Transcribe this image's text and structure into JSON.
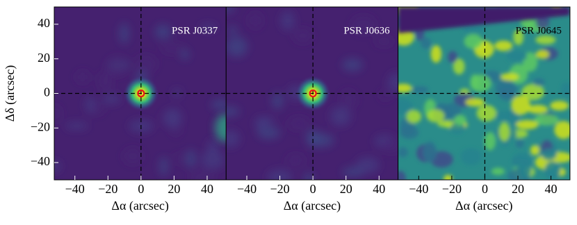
{
  "chart_data": [
    {
      "type": "heatmap",
      "title": "PSR J0337",
      "xlabel": "Δα (arcsec)",
      "ylabel": "Δδ (arcsec)",
      "xlim": [
        -52.5,
        51.5
      ],
      "ylim": [
        -50,
        50
      ],
      "xticks": [
        {
          "value": -40,
          "label": "−40"
        },
        {
          "value": -20,
          "label": "−20"
        },
        0,
        20,
        40
      ],
      "yticks": [
        {
          "value": -40,
          "label": "−40"
        },
        {
          "value": -20,
          "label": "−20"
        },
        0,
        20,
        40
      ],
      "crosshair": {
        "x": 0,
        "y": 0
      },
      "source": {
        "x": 0,
        "y": 0
      }
    },
    {
      "type": "heatmap",
      "title": "PSR J0636",
      "xlabel": "Δα (arcsec)",
      "xlim": [
        -52.5,
        51.5
      ],
      "ylim": [
        -50,
        50
      ],
      "xticks": [
        {
          "value": -40,
          "label": "−40"
        },
        {
          "value": -20,
          "label": "−20"
        },
        0,
        20,
        40
      ],
      "crosshair": {
        "x": 0,
        "y": 0
      },
      "source": {
        "x": 0,
        "y": 0
      }
    },
    {
      "type": "heatmap",
      "title": "PSR J0645",
      "xlabel": "Δα (arcsec)",
      "xlim": [
        -52.5,
        51.5
      ],
      "ylim": [
        -50,
        50
      ],
      "xticks": [
        {
          "value": -40,
          "label": "−40"
        },
        {
          "value": -20,
          "label": "−20"
        },
        0,
        20,
        40
      ],
      "crosshair": {
        "x": 0,
        "y": 0
      }
    }
  ]
}
